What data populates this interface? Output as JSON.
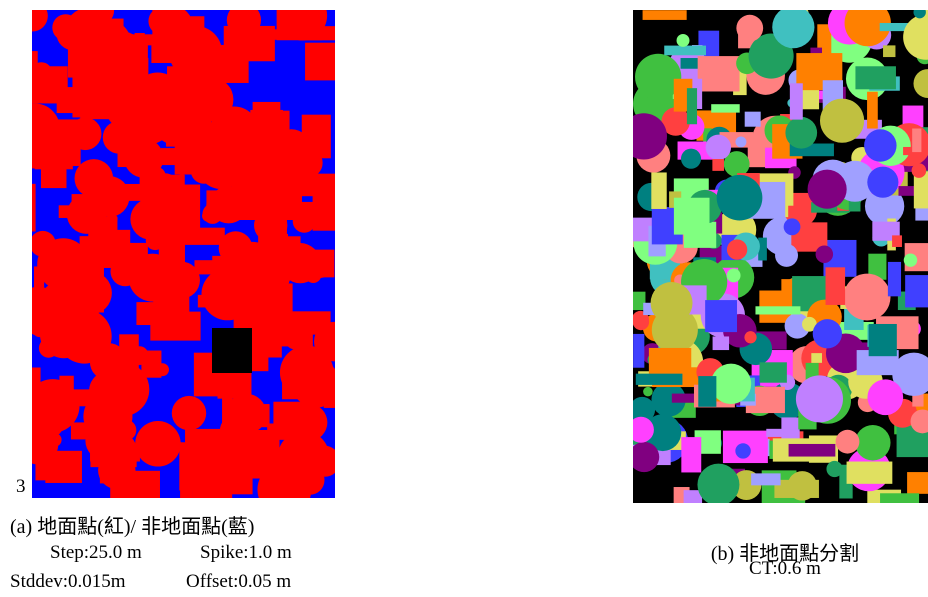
{
  "figure": {
    "left": {
      "stray_label": "3",
      "caption": "(a) 地面點(紅)/ 非地面點(藍)",
      "params": [
        [
          "Step:25.0 m",
          "Spike:1.0 m"
        ],
        [
          "Stddev:0.015m",
          "Offset:0.05 m"
        ]
      ]
    },
    "right": {
      "caption": "(b) 非地面點分割",
      "params": "CT:0.6 m"
    }
  }
}
